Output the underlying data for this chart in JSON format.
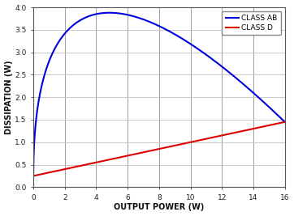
{
  "xlabel": "OUTPUT POWER (W)",
  "ylabel": "DISSIPATION (W)",
  "xlim": [
    0,
    16
  ],
  "ylim": [
    0,
    4
  ],
  "xticks": [
    0,
    2,
    4,
    6,
    8,
    10,
    12,
    14,
    16
  ],
  "yticks": [
    0,
    0.5,
    1.0,
    1.5,
    2.0,
    2.5,
    3.0,
    3.5,
    4.0
  ],
  "class_ab_color": "#0000dd",
  "class_d_color": "#dd0000",
  "legend_labels": [
    "CLASS AB",
    "CLASS D"
  ],
  "plot_bg": "#ffffff",
  "figure_bg": "#ffffff",
  "grid_color": "#b0b0b0",
  "spine_color": "#555555",
  "class_d_y0": 0.25,
  "class_d_y1": 1.45,
  "class_ab_a": 3.3,
  "class_ab_b": 0.75,
  "class_ab_c": 0.25
}
